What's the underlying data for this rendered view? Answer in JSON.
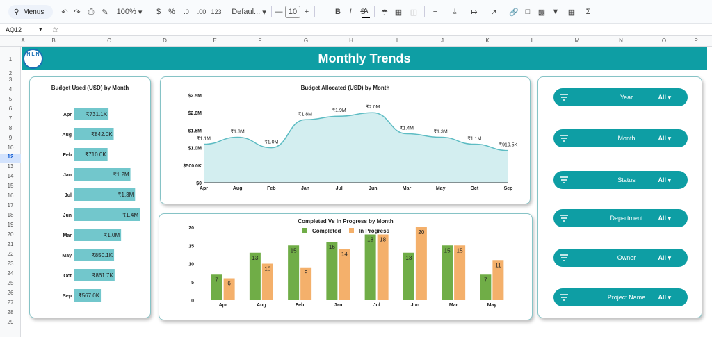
{
  "toolbar": {
    "menus": "Menus",
    "zoom": "100%",
    "currency": "$",
    "percent": "%",
    "dec_dec": ".0",
    "inc_dec": ".00",
    "format_123": "123",
    "font": "Defaul...",
    "minus": "—",
    "font_size": "10",
    "plus": "+",
    "bold": "B",
    "italic": "I",
    "strike": "S",
    "text_color": "A",
    "sum": "Σ"
  },
  "formula_bar": {
    "name_box": "AQ12",
    "fx": "fx"
  },
  "columns": [
    "A",
    "B",
    "C",
    "D",
    "E",
    "F",
    "G",
    "H",
    "I",
    "J",
    "K",
    "L",
    "M",
    "N",
    "O",
    "P"
  ],
  "rows": [
    "1",
    "2",
    "3",
    "4",
    "5",
    "6",
    "7",
    "8",
    "9",
    "10",
    "11",
    "12",
    "13",
    "14",
    "15",
    "16",
    "17",
    "18",
    "19",
    "20",
    "21",
    "22",
    "23",
    "24",
    "25",
    "26",
    "27",
    "28",
    "29"
  ],
  "dashboard": {
    "title": "Monthly Trends",
    "logo": "N L N"
  },
  "charts": {
    "budget_used": {
      "title": "Budget Used (USD) by Month"
    },
    "budget_alloc": {
      "title": "Budget Allocated (USD) by Month"
    },
    "completed": {
      "title": "Completed Vs In Progress by Month"
    }
  },
  "slicers": [
    {
      "label": "Year",
      "value": "All"
    },
    {
      "label": "Month",
      "value": "All"
    },
    {
      "label": "Status",
      "value": "All"
    },
    {
      "label": "Department",
      "value": "All"
    },
    {
      "label": "Owner",
      "value": "All"
    },
    {
      "label": "Project Name",
      "value": "All"
    }
  ],
  "chart_data": [
    {
      "type": "bar",
      "title": "Budget Used (USD) by Month",
      "categories": [
        "Apr",
        "Aug",
        "Feb",
        "Jan",
        "Jul",
        "Jun",
        "Mar",
        "May",
        "Oct",
        "Sep"
      ],
      "values": [
        731100,
        842000,
        710000,
        1200000,
        1300000,
        1400000,
        1000000,
        850100,
        861700,
        567000
      ],
      "data_labels": [
        "₹731.1K",
        "₹842.0K",
        "₹710.0K",
        "₹1.2M",
        "₹1.3M",
        "₹1.4M",
        "₹1.0M",
        "₹850.1K",
        "₹861.7K",
        "₹567.0K"
      ],
      "color": "#72c7cc"
    },
    {
      "type": "area",
      "title": "Budget Allocated (USD) by Month",
      "categories": [
        "Apr",
        "Aug",
        "Feb",
        "Jan",
        "Jul",
        "Jun",
        "Mar",
        "May",
        "Oct",
        "Sep"
      ],
      "values": [
        1100000,
        1300000,
        1000000,
        1800000,
        1900000,
        2000000,
        1400000,
        1300000,
        1100000,
        919500
      ],
      "data_labels": [
        "₹1.1M",
        "₹1.3M",
        "₹1.0M",
        "₹1.8M",
        "₹1.9M",
        "₹2.0M",
        "₹1.4M",
        "₹1.3M",
        "₹1.1M",
        "₹919.5K"
      ],
      "yticks": [
        "$0",
        "$500.0K",
        "$1.0M",
        "$1.5M",
        "$2.0M",
        "$2.5M"
      ],
      "ylim": [
        0,
        2500000
      ],
      "color": "#5dbcc3"
    },
    {
      "type": "bar",
      "title": "Completed Vs In Progress by Month",
      "categories": [
        "Apr",
        "Aug",
        "Feb",
        "Jan",
        "Jul",
        "Jun",
        "Mar",
        "May"
      ],
      "series": [
        {
          "name": "Completed",
          "values": [
            7,
            13,
            15,
            16,
            18,
            13,
            15,
            7
          ],
          "color": "#70ad47"
        },
        {
          "name": "In Progress",
          "values": [
            6,
            10,
            9,
            14,
            18,
            20,
            15,
            11
          ],
          "color": "#f4b06b"
        }
      ],
      "yticks": [
        "0",
        "5",
        "10",
        "15",
        "20"
      ],
      "ylim": [
        0,
        20
      ],
      "legend": "top"
    }
  ]
}
